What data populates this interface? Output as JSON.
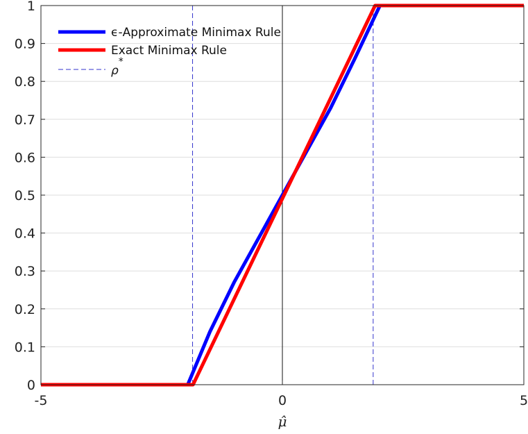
{
  "chart_data": {
    "type": "line",
    "title": "",
    "xlabel": "μ̂",
    "ylabel": "",
    "xlim": [
      -5,
      5
    ],
    "ylim": [
      0,
      1
    ],
    "x_ticks": [
      "-5",
      "0",
      "5"
    ],
    "x_tick_values": [
      -5,
      0,
      5
    ],
    "y_ticks": [
      "0",
      "0.1",
      "0.2",
      "0.3",
      "0.4",
      "0.5",
      "0.6",
      "0.7",
      "0.8",
      "0.9",
      "1"
    ],
    "y_tick_values": [
      0,
      0.1,
      0.2,
      0.3,
      0.4,
      0.5,
      0.6,
      0.7,
      0.8,
      0.9,
      1
    ],
    "grid": true,
    "legend_position": "top-left",
    "series": [
      {
        "name": "ϵ-Approximate Minimax Rule",
        "color": "#0000ff",
        "style": "solid",
        "x": [
          -5,
          -1.96,
          -1.5,
          -1.0,
          -0.5,
          0,
          0.5,
          1.0,
          1.5,
          2.02,
          5
        ],
        "y": [
          0,
          0,
          0.14,
          0.27,
          0.385,
          0.5,
          0.615,
          0.73,
          0.86,
          1,
          1
        ]
      },
      {
        "name": "Exact Minimax Rule",
        "color": "#ff0000",
        "style": "solid",
        "x": [
          -5,
          -1.85,
          1.92,
          5
        ],
        "y": [
          0,
          0,
          1,
          1
        ]
      },
      {
        "name": "ρ*",
        "color": "#3333cc",
        "style": "dashed",
        "vlines": [
          -1.86,
          1.88
        ]
      }
    ]
  }
}
